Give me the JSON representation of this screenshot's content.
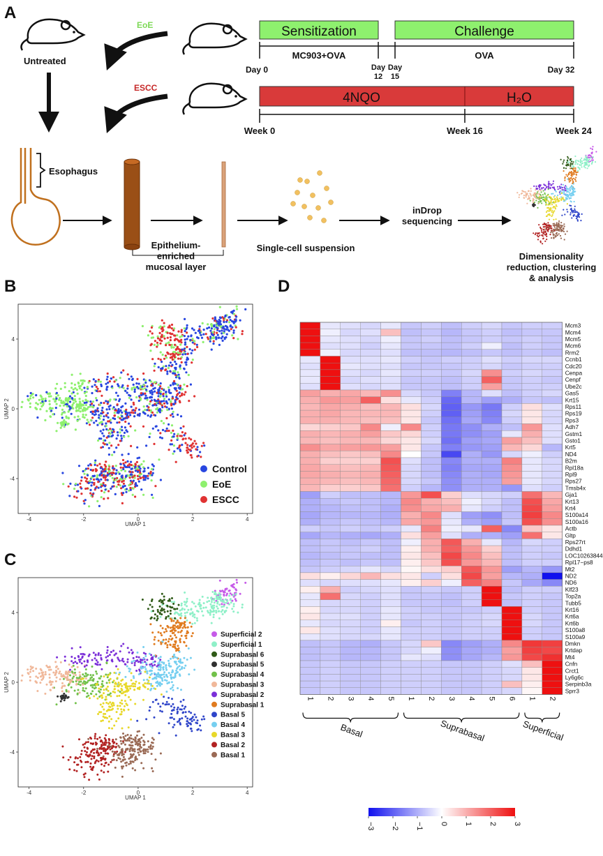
{
  "panels": {
    "a": "A",
    "b": "B",
    "c": "C",
    "d": "D"
  },
  "panel_a": {
    "untreated": "Untreated",
    "eoe": "EoE",
    "escc": "ESCC",
    "sensitization": "Sensitization",
    "challenge": "Challenge",
    "mc903": "MC903+OVA",
    "ova": "OVA",
    "day0": "Day 0",
    "day12": "Day\n12",
    "day15": "Day\n15",
    "day32": "Day 32",
    "nqo": "4NQO",
    "h2o": "H₂O",
    "week0": "Week 0",
    "week16": "Week 16",
    "week24": "Week 24",
    "esophagus": "Esophagus",
    "epithelium": "Epithelium-\nenriched\nmucosal layer",
    "suspension": "Single-cell suspension",
    "indrop": "inDrop\nsequencing",
    "analysis": "Dimensionality\nreduction, clustering\n& analysis",
    "colors": {
      "green": "#8ef06e",
      "green_text": "#7ed957",
      "red": "#d93a3a",
      "red_text": "#c62828"
    }
  },
  "panel_b": {
    "xlabel": "UMAP 1",
    "ylabel": "UMAP 2",
    "xticks": [
      "-4",
      "-2",
      "0",
      "2",
      "4"
    ],
    "yticks": [
      "4",
      "0",
      "-4"
    ],
    "legend": [
      {
        "label": "Control",
        "color": "#2846e0"
      },
      {
        "label": "EoE",
        "color": "#8ef06e"
      },
      {
        "label": "ESCC",
        "color": "#e03232"
      }
    ]
  },
  "panel_c": {
    "xlabel": "UMAP 1",
    "ylabel": "UMAP 2",
    "xticks": [
      "-4",
      "-2",
      "0",
      "2",
      "4"
    ],
    "yticks": [
      "4",
      "0",
      "-4"
    ],
    "legend": [
      {
        "label": "Superficial 2",
        "color": "#c65be8"
      },
      {
        "label": "Superficial 1",
        "color": "#8ff0c8"
      },
      {
        "label": "Suprabasal 6",
        "color": "#2f5a17"
      },
      {
        "label": "Suprabasal 5",
        "color": "#303030"
      },
      {
        "label": "Suprabasal 4",
        "color": "#72c14a"
      },
      {
        "label": "Suprabasal 3",
        "color": "#f0b89a"
      },
      {
        "label": "Suprabasal 2",
        "color": "#7b2fd8"
      },
      {
        "label": "Suprabasal 1",
        "color": "#e07b1f"
      },
      {
        "label": "Basal 5",
        "color": "#2f45c9"
      },
      {
        "label": "Basal 4",
        "color": "#76cff0"
      },
      {
        "label": "Basal 3",
        "color": "#e8d82a"
      },
      {
        "label": "Basal 2",
        "color": "#b22222"
      },
      {
        "label": "Basal 1",
        "color": "#9a6a55"
      }
    ]
  },
  "chart_data": {
    "type": "heatmap",
    "genes": [
      "Mcm3",
      "Mcm4",
      "Mcm5",
      "Mcm6",
      "Rrm2",
      "Ccnb1",
      "Cdc20",
      "Cenpa",
      "Cenpf",
      "Ube2c",
      "Gas5",
      "Krt15",
      "Rps11",
      "Rps19",
      "Rps3",
      "Adh7",
      "Gstm1",
      "Gsto1",
      "Krt5",
      "ND4",
      "B2m",
      "Rpl18a",
      "Rpl9",
      "Rps27",
      "Tmsb4x",
      "Gja1",
      "Krt13",
      "Krt4",
      "S100a14",
      "S100a16",
      "Actb",
      "Gltp",
      "Rps27rt",
      "Ddhd1",
      "LOC102638448",
      "Rpl17−ps8",
      "Mt2",
      "ND2",
      "ND6",
      "Klf23",
      "Top2a",
      "Tubb5",
      "Krt16",
      "Krt6a",
      "Krt6b",
      "S100a8",
      "S100a9",
      "Dmkn",
      "Krtdap",
      "Mt4",
      "Cnfn",
      "Crct1",
      "Ly6g6c",
      "Serpinb3a",
      "Sprr3"
    ],
    "columns": [
      "1",
      "2",
      "3",
      "4",
      "5",
      "1",
      "2",
      "3",
      "4",
      "5",
      "6",
      "1",
      "2"
    ],
    "groups": [
      {
        "label": "Basal",
        "span": [
          0,
          4
        ]
      },
      {
        "label": "Suprabasal",
        "span": [
          5,
          10
        ]
      },
      {
        "label": "Superficial",
        "span": [
          11,
          12
        ]
      }
    ],
    "scale": {
      "min": -3,
      "max": 3,
      "ticks": [
        "−3",
        "−2",
        "−1",
        "0",
        "1",
        "2",
        "3"
      ]
    },
    "values": [
      [
        3,
        -0.3,
        -0.4,
        -0.5,
        -0.3,
        -0.7,
        -0.6,
        -0.8,
        -0.6,
        -0.5,
        -0.7,
        -0.6,
        -0.6
      ],
      [
        3,
        -0.2,
        -0.5,
        -0.4,
        0.8,
        -0.8,
        -0.7,
        -0.9,
        -0.7,
        -0.6,
        -0.8,
        -0.7,
        -0.7
      ],
      [
        3,
        -0.3,
        -0.4,
        -0.5,
        -0.2,
        -0.7,
        -0.6,
        -0.8,
        -0.7,
        -0.6,
        -0.7,
        -0.6,
        -0.7
      ],
      [
        3,
        -0.4,
        -0.4,
        -0.6,
        -0.3,
        -0.7,
        -0.7,
        -0.8,
        -0.6,
        -0.2,
        -0.8,
        -0.6,
        -0.7
      ],
      [
        3,
        -0.2,
        -0.5,
        -0.5,
        -0.4,
        -0.8,
        -0.8,
        -0.9,
        -0.8,
        -0.7,
        -0.8,
        -0.7,
        -0.8
      ],
      [
        -0.3,
        3,
        -0.4,
        -0.4,
        -0.3,
        -0.6,
        -0.7,
        -0.6,
        -0.6,
        -0.4,
        -0.6,
        -0.5,
        -0.5
      ],
      [
        -0.4,
        3,
        -0.3,
        -0.4,
        -0.4,
        -0.7,
        -0.7,
        -0.7,
        -0.6,
        -0.5,
        -0.7,
        -0.6,
        -0.6
      ],
      [
        -0.3,
        3,
        -0.4,
        -0.5,
        -0.3,
        -0.6,
        -0.6,
        -0.7,
        -0.5,
        1.4,
        -0.6,
        -0.5,
        -0.6
      ],
      [
        -0.3,
        3,
        -0.5,
        -0.4,
        -0.4,
        -0.7,
        -0.7,
        -0.8,
        -0.6,
        2.0,
        -0.7,
        -0.6,
        -0.7
      ],
      [
        -0.4,
        3,
        -0.4,
        -0.5,
        -0.4,
        -0.7,
        -0.7,
        -0.8,
        -0.6,
        1.2,
        -0.7,
        -0.6,
        -0.6
      ],
      [
        1.2,
        1.0,
        1.1,
        0.9,
        1.4,
        -0.5,
        -0.7,
        -1.6,
        -0.9,
        -0.4,
        -0.8,
        -0.6,
        -0.5
      ],
      [
        1.0,
        1.3,
        1.2,
        2.0,
        0.4,
        -0.3,
        -0.6,
        -1.9,
        -0.9,
        -1.2,
        -1.0,
        -0.7,
        -0.8
      ],
      [
        0.9,
        1.1,
        1.0,
        0.8,
        0.9,
        0.4,
        -0.5,
        -2.0,
        -1.3,
        -1.7,
        -0.6,
        0.4,
        -0.4
      ],
      [
        1.0,
        1.1,
        0.9,
        0.9,
        0.9,
        0.3,
        -0.6,
        -2.0,
        -1.2,
        -1.6,
        -0.5,
        0.3,
        -0.5
      ],
      [
        1.0,
        1.0,
        0.9,
        0.8,
        0.8,
        0.3,
        -0.7,
        -1.8,
        -1.1,
        -1.5,
        -0.6,
        0.3,
        -0.5
      ],
      [
        0.5,
        0.6,
        0.7,
        1.5,
        -0.2,
        1.5,
        -0.6,
        -1.7,
        -1.4,
        -1.0,
        -0.8,
        1.3,
        -0.4
      ],
      [
        1.0,
        0.9,
        1.0,
        1.2,
        0.7,
        0.5,
        -0.6,
        -1.7,
        -1.4,
        -1.2,
        -0.3,
        1.0,
        -0.4
      ],
      [
        0.9,
        0.8,
        0.9,
        0.9,
        0.5,
        0.3,
        -0.5,
        -1.8,
        -1.2,
        -1.1,
        1.2,
        0.8,
        -0.4
      ],
      [
        1.4,
        1.1,
        1.2,
        1.3,
        1.2,
        0.3,
        -0.7,
        -1.6,
        -1.3,
        -1.2,
        0.9,
        0.5,
        -0.9
      ],
      [
        1.0,
        0.8,
        0.7,
        0.8,
        1.5,
        0.0,
        -0.7,
        -2.3,
        -1.0,
        -1.3,
        -0.5,
        -0.2,
        -0.6
      ],
      [
        1.0,
        0.6,
        0.6,
        0.6,
        2.2,
        -0.4,
        -0.8,
        -1.5,
        -1.0,
        -1.0,
        1.6,
        -0.3,
        -0.5
      ],
      [
        1.1,
        0.9,
        0.8,
        0.9,
        2.1,
        -0.5,
        -0.8,
        -1.6,
        -1.1,
        -1.1,
        1.4,
        -0.3,
        -0.5
      ],
      [
        1.1,
        1.0,
        0.9,
        1.0,
        2.0,
        -0.5,
        -0.8,
        -1.5,
        -1.0,
        -1.1,
        1.3,
        -0.3,
        -0.5
      ],
      [
        1.0,
        0.9,
        0.8,
        0.9,
        1.9,
        -0.5,
        -0.7,
        -1.4,
        -1.0,
        -1.0,
        1.2,
        -0.3,
        -0.5
      ],
      [
        0.9,
        0.6,
        0.6,
        0.7,
        1.8,
        -0.6,
        -0.9,
        -1.4,
        -1.0,
        -1.0,
        -1.3,
        -0.4,
        -0.6
      ],
      [
        -1.2,
        -0.6,
        -0.8,
        -0.8,
        -0.9,
        1.3,
        2.2,
        0.6,
        -0.4,
        -0.5,
        -0.6,
        1.8,
        0.9
      ],
      [
        -1.0,
        -0.8,
        -0.7,
        -0.8,
        -0.9,
        1.5,
        1.0,
        0.8,
        -0.2,
        -0.5,
        -0.8,
        2.2,
        1.1
      ],
      [
        -1.0,
        -0.9,
        -0.8,
        -0.8,
        -1.0,
        1.4,
        1.1,
        1.0,
        -0.3,
        -0.6,
        -0.8,
        2.3,
        1.2
      ],
      [
        -1.1,
        -0.9,
        -0.9,
        -0.9,
        -1.0,
        1.0,
        1.5,
        -0.4,
        -1.2,
        -1.4,
        -0.8,
        2.4,
        1.5
      ],
      [
        -1.0,
        -0.8,
        -0.7,
        -0.8,
        -0.9,
        1.1,
        1.3,
        -0.3,
        -1.0,
        -1.2,
        -0.7,
        2.2,
        1.4
      ],
      [
        -0.6,
        -0.7,
        -0.6,
        -0.7,
        -0.6,
        -0.3,
        1.6,
        -0.2,
        -0.3,
        2.0,
        -1.5,
        0.7,
        0.3
      ],
      [
        -1.1,
        -0.9,
        -1.0,
        -1.1,
        -1.0,
        0.4,
        1.2,
        -0.4,
        -1.0,
        -1.0,
        -1.2,
        1.8,
        0.3
      ],
      [
        -0.8,
        -0.7,
        -0.8,
        -0.7,
        -0.8,
        -0.2,
        1.0,
        2.1,
        1.0,
        -0.3,
        -0.9,
        -0.5,
        -0.6
      ],
      [
        -0.8,
        -0.7,
        -0.7,
        -0.6,
        -0.8,
        0.2,
        1.0,
        2.0,
        1.3,
        0.6,
        -0.8,
        -0.6,
        -0.6
      ],
      [
        -0.9,
        -0.8,
        -0.7,
        -0.8,
        -0.8,
        0.3,
        0.8,
        2.3,
        1.5,
        0.8,
        -0.8,
        -0.6,
        -0.7
      ],
      [
        -0.8,
        -0.7,
        -0.8,
        -0.7,
        -0.8,
        0.2,
        0.7,
        2.2,
        1.3,
        0.9,
        -0.8,
        -0.6,
        -0.6
      ],
      [
        -0.7,
        -0.6,
        -0.5,
        -0.3,
        -0.5,
        0.1,
        0.4,
        0.6,
        2.1,
        1.3,
        -1.2,
        -0.9,
        -1.3
      ],
      [
        0.4,
        0.2,
        0.5,
        0.9,
        0.4,
        0.3,
        -0.6,
        0.4,
        2.3,
        1.2,
        -0.9,
        -1.0,
        -3.0
      ],
      [
        -0.4,
        -0.5,
        -0.4,
        -0.4,
        -0.3,
        0.2,
        0.6,
        -0.2,
        2.0,
        1.6,
        -0.7,
        -1.1,
        -1.5
      ],
      [
        0.2,
        1.0,
        -0.6,
        -0.5,
        -0.4,
        -0.7,
        -0.6,
        -0.7,
        -0.6,
        3.0,
        -0.8,
        -0.6,
        -0.6
      ],
      [
        -0.3,
        1.8,
        -0.5,
        -0.6,
        -0.4,
        -0.7,
        -0.7,
        -0.8,
        -0.6,
        3.0,
        -0.7,
        -0.6,
        -0.7
      ],
      [
        -0.3,
        -0.5,
        -0.5,
        -0.6,
        -0.4,
        -0.7,
        -0.7,
        -0.8,
        -0.6,
        3.0,
        -0.8,
        -0.6,
        -0.7
      ],
      [
        0.2,
        -0.5,
        -0.5,
        -0.6,
        -0.3,
        -0.6,
        -0.7,
        -0.7,
        -0.7,
        -0.6,
        3.0,
        -0.6,
        -0.7
      ],
      [
        0.3,
        -0.4,
        -0.4,
        -0.6,
        -0.3,
        -0.6,
        -0.6,
        -0.7,
        -0.6,
        -0.5,
        3.0,
        -0.5,
        -0.7
      ],
      [
        -0.3,
        -0.5,
        -0.5,
        -0.6,
        0.2,
        -0.7,
        -0.6,
        -0.7,
        -0.6,
        -0.5,
        3.0,
        -0.5,
        -0.7
      ],
      [
        0.3,
        -0.4,
        -0.5,
        -0.6,
        -0.3,
        -0.6,
        -0.6,
        -0.7,
        -0.6,
        -0.6,
        3.0,
        -0.6,
        -0.7
      ],
      [
        -0.3,
        -0.4,
        -0.5,
        -0.5,
        -0.3,
        -0.6,
        -0.6,
        -0.7,
        -0.6,
        -0.6,
        3.0,
        -0.6,
        -0.7
      ],
      [
        -0.8,
        -0.7,
        -0.9,
        -1.0,
        -0.7,
        -0.5,
        0.7,
        -1.5,
        -1.2,
        -1.0,
        1.5,
        2.5,
        2.4
      ],
      [
        -0.8,
        -0.7,
        -0.9,
        -0.9,
        -0.7,
        -0.5,
        -0.2,
        -1.4,
        -1.1,
        -1.0,
        1.2,
        2.4,
        2.3
      ],
      [
        -0.8,
        -0.7,
        -0.9,
        -0.9,
        -0.7,
        -0.3,
        -0.4,
        -1.4,
        -1.1,
        -0.9,
        1.3,
        2.3,
        2.6
      ],
      [
        -0.7,
        -0.6,
        -0.7,
        -0.7,
        -0.6,
        -0.6,
        -0.6,
        -0.7,
        -0.7,
        -0.6,
        -0.4,
        0.8,
        3.0
      ],
      [
        -0.7,
        -0.6,
        -0.7,
        -0.7,
        -0.6,
        -0.6,
        -0.6,
        -0.7,
        -0.7,
        -0.6,
        -0.5,
        0.3,
        3.0
      ],
      [
        -0.7,
        -0.6,
        -0.7,
        -0.7,
        -0.6,
        -0.6,
        -0.6,
        -0.7,
        -0.7,
        -0.6,
        -0.5,
        0.3,
        3.0
      ],
      [
        -0.7,
        -0.6,
        -0.7,
        -0.7,
        -0.6,
        -0.6,
        -0.6,
        -0.7,
        -0.7,
        -0.6,
        0.8,
        0.2,
        3.0
      ],
      [
        -0.7,
        -0.6,
        -0.7,
        -0.7,
        -0.6,
        -0.6,
        -0.6,
        -0.7,
        -0.7,
        -0.6,
        -0.5,
        0.1,
        3.0
      ]
    ]
  }
}
